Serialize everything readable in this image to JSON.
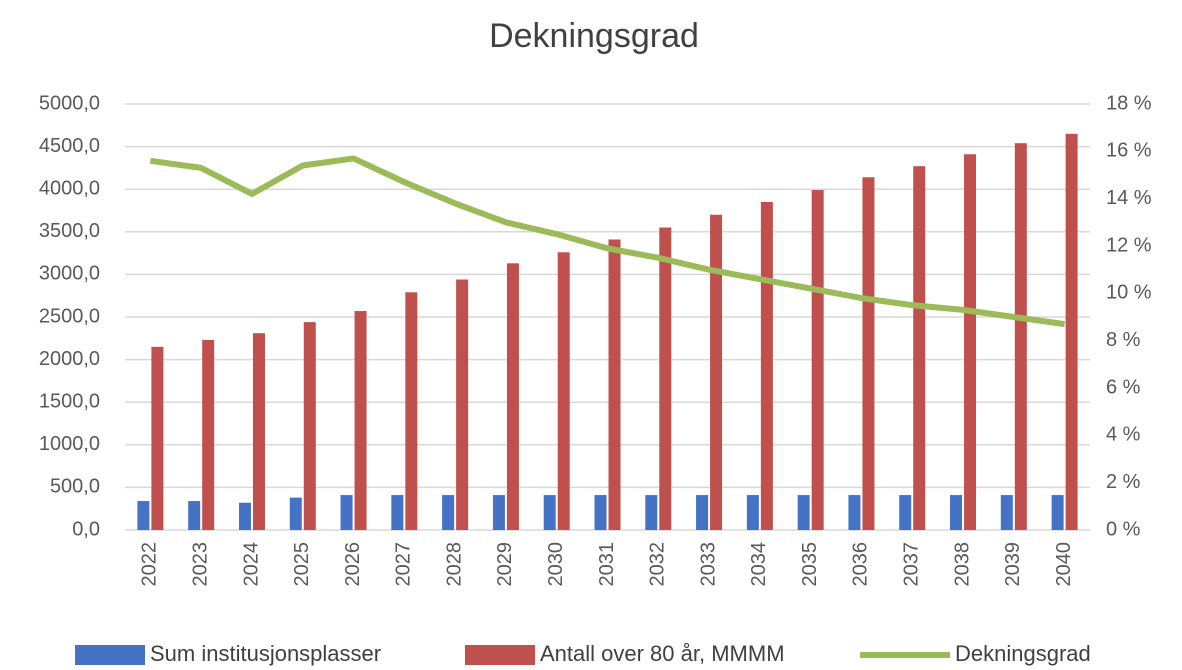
{
  "chart_data": {
    "type": "bar",
    "title": "Dekningsgrad",
    "categories": [
      "2022",
      "2023",
      "2024",
      "2025",
      "2026",
      "2027",
      "2028",
      "2029",
      "2030",
      "2031",
      "2032",
      "2033",
      "2034",
      "2035",
      "2036",
      "2037",
      "2038",
      "2039",
      "2040"
    ],
    "series": [
      {
        "name": "Sum institusjonsplasser",
        "type": "bar",
        "color": "#4472c4",
        "values": [
          340,
          340,
          320,
          380,
          410,
          410,
          410,
          410,
          410,
          410,
          410,
          410,
          410,
          410,
          410,
          410,
          410,
          410,
          410
        ]
      },
      {
        "name": "Antall over 80 år, MMMM",
        "type": "bar",
        "color": "#c0504d",
        "values": [
          2150,
          2230,
          2310,
          2440,
          2570,
          2790,
          2940,
          3130,
          3260,
          3410,
          3550,
          3700,
          3850,
          3990,
          4140,
          4270,
          4410,
          4540,
          4650
        ]
      },
      {
        "name": "Dekningsgrad",
        "type": "line",
        "axis": "y2",
        "color": "#9bbb59",
        "values": [
          15.6,
          15.3,
          14.2,
          15.4,
          15.7,
          14.7,
          13.8,
          13.0,
          12.5,
          11.9,
          11.5,
          11.0,
          10.6,
          10.2,
          9.8,
          9.5,
          9.3,
          9.0,
          8.7
        ]
      }
    ],
    "ylim": [
      0,
      5000
    ],
    "yticks": [
      {
        "value": 0,
        "label": "0,0"
      },
      {
        "value": 500,
        "label": "500,0"
      },
      {
        "value": 1000,
        "label": "1000,0"
      },
      {
        "value": 1500,
        "label": "1500,0"
      },
      {
        "value": 2000,
        "label": "2000,0"
      },
      {
        "value": 2500,
        "label": "2500,0"
      },
      {
        "value": 3000,
        "label": "3000,0"
      },
      {
        "value": 3500,
        "label": "3500,0"
      },
      {
        "value": 4000,
        "label": "4000,0"
      },
      {
        "value": 4500,
        "label": "4500,0"
      },
      {
        "value": 5000,
        "label": "5000,0"
      }
    ],
    "y2lim": [
      0,
      18
    ],
    "y2ticks": [
      {
        "value": 0,
        "label": "0 %"
      },
      {
        "value": 2,
        "label": "2 %"
      },
      {
        "value": 4,
        "label": "4 %"
      },
      {
        "value": 6,
        "label": "6 %"
      },
      {
        "value": 8,
        "label": "8 %"
      },
      {
        "value": 10,
        "label": "10 %"
      },
      {
        "value": 12,
        "label": "12 %"
      },
      {
        "value": 14,
        "label": "14 %"
      },
      {
        "value": 16,
        "label": "16 %"
      },
      {
        "value": 18,
        "label": "18 %"
      }
    ],
    "grid": true,
    "legend": "bottom"
  }
}
